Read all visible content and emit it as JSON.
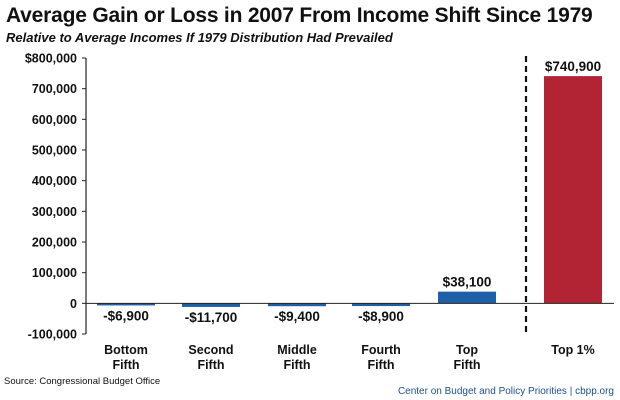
{
  "title": "Average Gain or Loss in 2007 From Income Shift Since 1979",
  "subtitle": "Relative to Average Incomes If 1979 Distribution Had Prevailed",
  "source": "Source: Congressional Budget Office",
  "credit": "Center on Budget and Policy Priorities | cbpp.org",
  "colors": {
    "blue": "#1f5fa8",
    "red": "#b22433",
    "axis": "#222222"
  },
  "chart_data": {
    "type": "bar",
    "categories": [
      [
        "Bottom",
        "Fifth"
      ],
      [
        "Second",
        "Fifth"
      ],
      [
        "Middle",
        "Fifth"
      ],
      [
        "Fourth",
        "Fifth"
      ],
      [
        "Top",
        "Fifth"
      ],
      [
        "Top 1%"
      ]
    ],
    "values": [
      -6900,
      -11700,
      -9400,
      -8900,
      38100,
      740900
    ],
    "value_labels": [
      "-$6,900",
      "-$11,700",
      "-$9,400",
      "-$8,900",
      "$38,100",
      "$740,900"
    ],
    "bar_colors": [
      "blue",
      "blue",
      "blue",
      "blue",
      "blue",
      "red"
    ],
    "ylim": [
      -100000,
      800000
    ],
    "yticks": [
      {
        "value": 800000,
        "label": "$800,000"
      },
      {
        "value": 700000,
        "label": "700,000"
      },
      {
        "value": 600000,
        "label": "600,000"
      },
      {
        "value": 500000,
        "label": "500,000"
      },
      {
        "value": 400000,
        "label": "400,000"
      },
      {
        "value": 300000,
        "label": "300,000"
      },
      {
        "value": 200000,
        "label": "200,000"
      },
      {
        "value": 100000,
        "label": "100,000"
      },
      {
        "value": 0,
        "label": "0"
      },
      {
        "value": -100000,
        "label": "-100,000"
      }
    ],
    "grid": false,
    "separator_before_last": true
  }
}
